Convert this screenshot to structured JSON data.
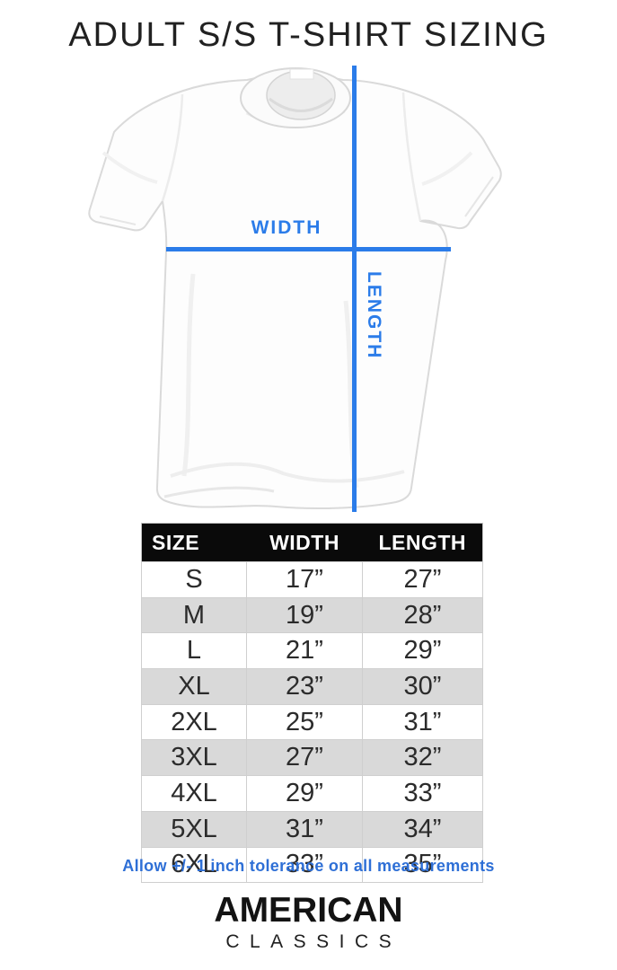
{
  "title": "ADULT S/S T-SHIRT SIZING",
  "colors": {
    "accent_blue": "#2b7ce9",
    "note_blue": "#2e6fd6",
    "header_black": "#0a0a0a",
    "row_alt_gray": "#d9d9d9"
  },
  "diagram": {
    "width_label": "WIDTH",
    "length_label": "LENGTH"
  },
  "sizing_table": {
    "columns": [
      "SIZE",
      "WIDTH",
      "LENGTH"
    ],
    "rows": [
      [
        "S",
        "17”",
        "27”"
      ],
      [
        "M",
        "19”",
        "28”"
      ],
      [
        "L",
        "21”",
        "29”"
      ],
      [
        "XL",
        "23”",
        "30”"
      ],
      [
        "2XL",
        "25”",
        "31”"
      ],
      [
        "3XL",
        "27”",
        "32”"
      ],
      [
        "4XL",
        "29”",
        "33”"
      ],
      [
        "5XL",
        "31”",
        "34”"
      ],
      [
        "6XL",
        "33”",
        "35”"
      ]
    ]
  },
  "tolerance_note": "Allow +/- 1 inch tolerance on all measurements",
  "brand": {
    "name": "AMERICAN",
    "subname": "CLASSICS"
  }
}
